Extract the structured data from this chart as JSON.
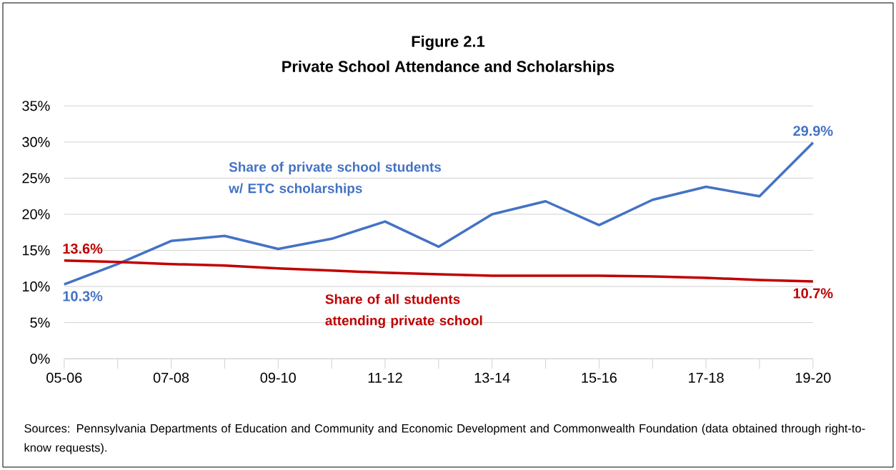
{
  "chart_data": {
    "type": "line",
    "title": "Figure 2.1",
    "subtitle": "Private School Attendance and Scholarships",
    "categories": [
      "05-06",
      null,
      "07-08",
      null,
      "09-10",
      null,
      "11-12",
      null,
      "13-14",
      null,
      "15-16",
      null,
      "17-18",
      null,
      "19-20"
    ],
    "series": [
      {
        "name": "Share of private school students w/ ETC scholarships",
        "color": "#4472c4",
        "values": [
          10.3,
          13.1,
          16.3,
          17.0,
          15.2,
          16.6,
          19.0,
          15.5,
          20.0,
          21.8,
          18.5,
          22.0,
          23.8,
          22.5,
          29.9
        ],
        "value_labels": [
          "10.3%",
          null,
          null,
          null,
          null,
          null,
          null,
          null,
          null,
          null,
          null,
          null,
          null,
          null,
          "29.9%"
        ]
      },
      {
        "name": "Share of all students attending private school",
        "color": "#c00000",
        "values": [
          13.6,
          13.4,
          13.1,
          12.9,
          12.5,
          12.2,
          11.9,
          11.7,
          11.5,
          11.5,
          11.5,
          11.4,
          11.2,
          10.9,
          10.7
        ],
        "value_labels": [
          "13.6%",
          null,
          null,
          null,
          null,
          null,
          null,
          null,
          null,
          null,
          null,
          null,
          null,
          null,
          "10.7%"
        ]
      }
    ],
    "ylim": [
      0,
      35
    ],
    "yticks": [
      {
        "value": 0,
        "label": "0%"
      },
      {
        "value": 5,
        "label": "5%"
      },
      {
        "value": 10,
        "label": "10%"
      },
      {
        "value": 15,
        "label": "15%"
      },
      {
        "value": 20,
        "label": "20%"
      },
      {
        "value": 25,
        "label": "25%"
      },
      {
        "value": 30,
        "label": "30%"
      },
      {
        "value": 35,
        "label": "35%"
      }
    ],
    "grid": "y",
    "annotations": [
      "Sources: Pennsylvania Departments of Education and Community and Economic Development and Commonwealth Foundation (data obtained through right-to-know requests)."
    ]
  }
}
